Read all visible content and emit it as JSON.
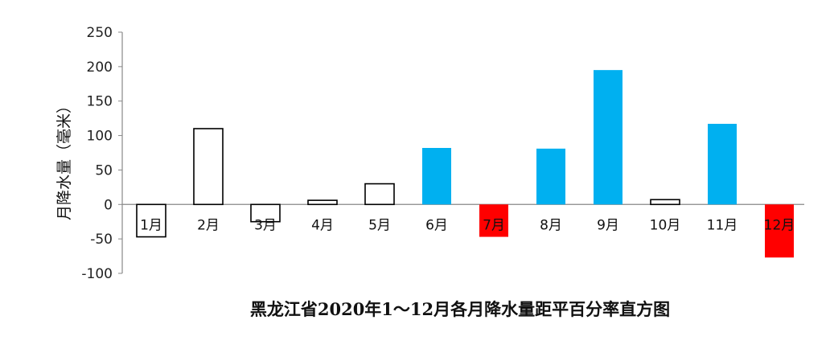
{
  "chart_data": {
    "type": "bar",
    "title": "黑龙江省2020年1～12月各月降水量距平百分率直方图",
    "ylabel": "月降水量（毫米）",
    "xlabel": "",
    "ylim": [
      -100,
      250
    ],
    "yticks": [
      -100,
      -50,
      0,
      50,
      100,
      150,
      200,
      250
    ],
    "categories": [
      "1月",
      "2月",
      "3月",
      "4月",
      "5月",
      "6月",
      "7月",
      "8月",
      "9月",
      "10月",
      "11月",
      "12月"
    ],
    "values": [
      -47,
      110,
      -25,
      6,
      30,
      82,
      -47,
      81,
      195,
      7,
      117,
      -77
    ],
    "bar_fill": [
      "none",
      "none",
      "none",
      "none",
      "none",
      "#00b0f0",
      "#ff0000",
      "#00b0f0",
      "#00b0f0",
      "none",
      "#00b0f0",
      "#ff0000"
    ],
    "colors": {
      "positive_high": "#00b0f0",
      "negative_high": "#ff0000",
      "normal_outline": "#000000"
    },
    "grid": false,
    "legend": "none"
  }
}
